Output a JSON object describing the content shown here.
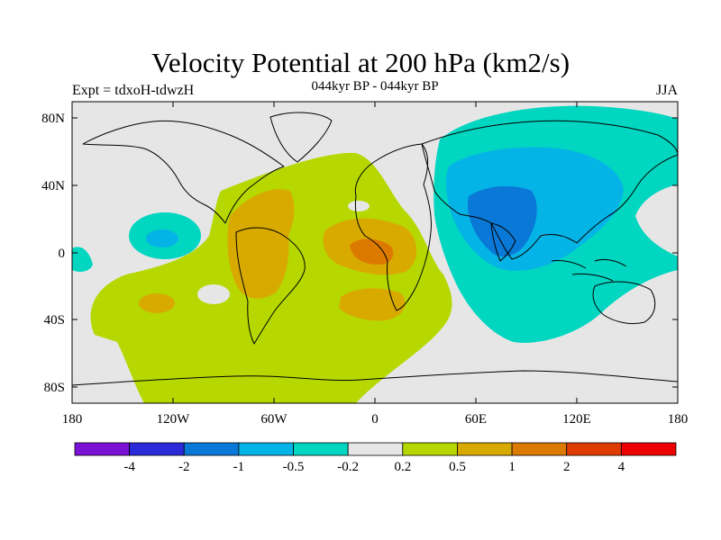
{
  "title": "Velocity Potential at 200 hPa (km2/s)",
  "subtitle": "044kyr BP - 044kyr BP",
  "experiment": "Expt = tdxoH-tdwzH",
  "season": "JJA",
  "map": {
    "projection": "cylindrical equidistant",
    "lon_ticks": [
      "180",
      "120W",
      "60W",
      "0",
      "60E",
      "120E",
      "180"
    ],
    "lat_ticks": [
      "80N",
      "40N",
      "0",
      "40S",
      "80S"
    ],
    "coastlines": true,
    "field": "velocity potential difference",
    "units": "km2/s"
  },
  "colorbar": {
    "levels": [
      "-4",
      "-2",
      "-1",
      "-0.5",
      "-0.2",
      "0.2",
      "0.5",
      "1",
      "2",
      "4"
    ],
    "colors": [
      "#7b12d6",
      "#2a2ad8",
      "#0a78d6",
      "#05b4e6",
      "#00d6c0",
      "#e6e6e6",
      "#b6d800",
      "#d8aa00",
      "#dc7a00",
      "#de3c00",
      "#ee0000"
    ]
  }
}
